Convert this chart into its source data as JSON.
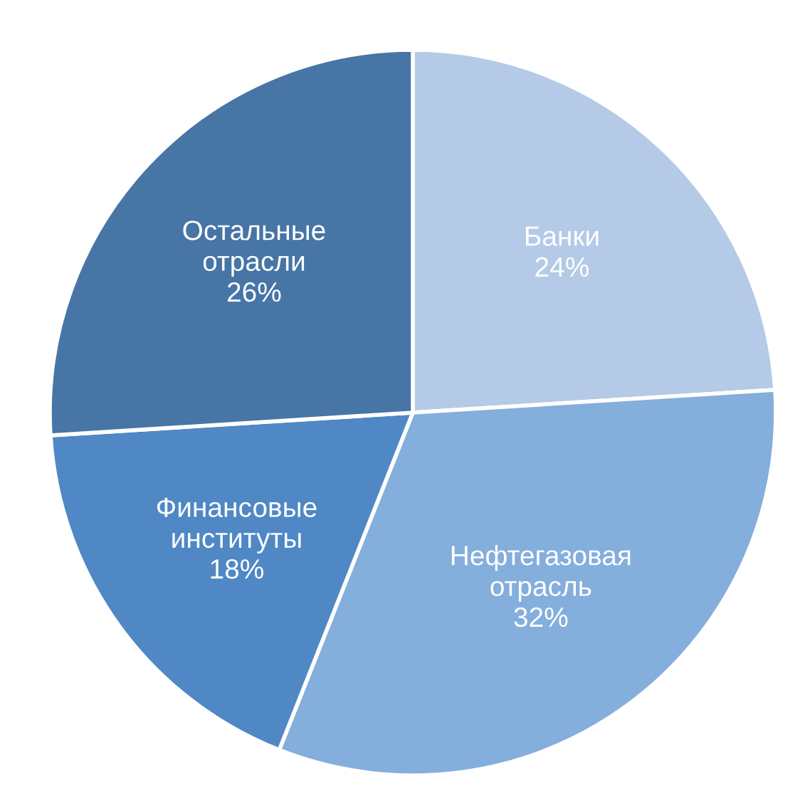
{
  "chart_data": {
    "type": "pie",
    "categories": [
      "Банки",
      "Нефтегазовая отрасль",
      "Финансовые институты",
      "Остальные отрасли"
    ],
    "values": [
      24,
      32,
      18,
      26
    ],
    "value_labels": [
      "24%",
      "32%",
      "18%",
      "26%"
    ],
    "colors": [
      "#b4cae7",
      "#84aedc",
      "#4f88c5",
      "#4675a6"
    ],
    "legend": false
  }
}
